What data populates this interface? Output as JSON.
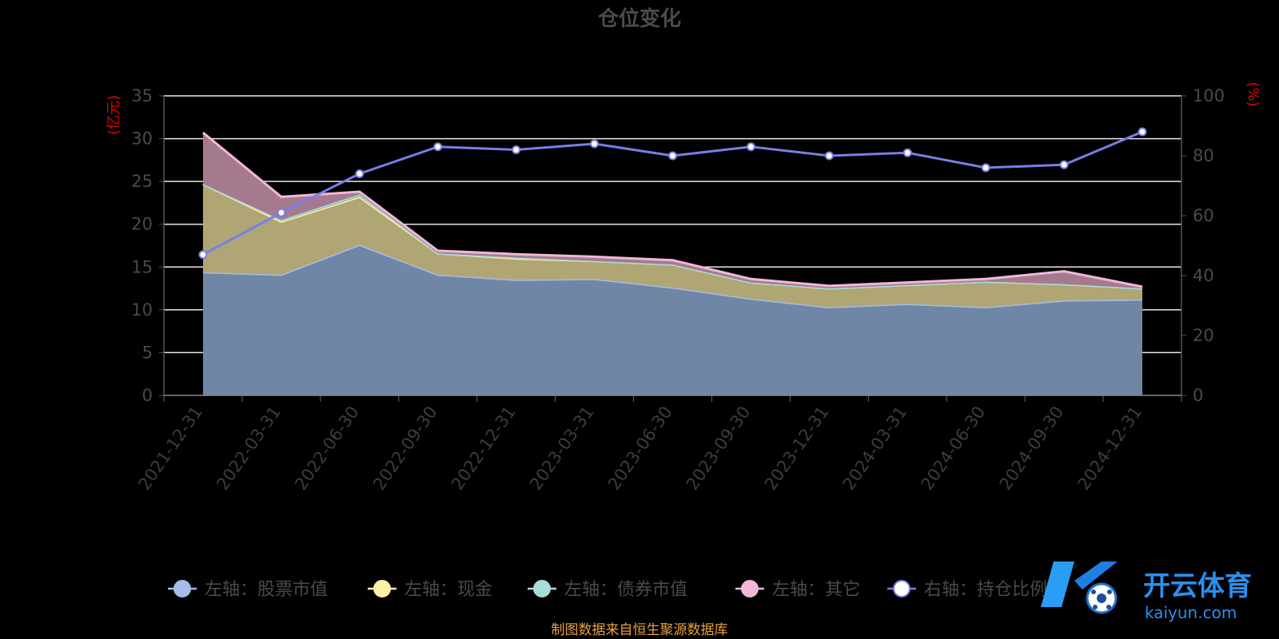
{
  "chart_data": {
    "type": "area",
    "title": "仓位变化",
    "ylabel_left": "(亿元)",
    "ylabel_right": "(%)",
    "ylim_left": [
      0,
      35
    ],
    "yticks_left": [
      0,
      5,
      10,
      15,
      20,
      25,
      30,
      35
    ],
    "ylim_right": [
      0,
      100
    ],
    "yticks_right": [
      0,
      20,
      40,
      60,
      80,
      100
    ],
    "grid": true,
    "legend_position": "bottom",
    "stacked": true,
    "categories": [
      "2021-12-31",
      "2022-03-31",
      "2022-06-30",
      "2022-09-30",
      "2022-12-31",
      "2023-03-31",
      "2023-06-30",
      "2023-09-30",
      "2023-12-31",
      "2024-03-31",
      "2024-06-30",
      "2024-09-30",
      "2024-12-31"
    ],
    "series": [
      {
        "name": "左轴：股票市值",
        "axis": "left",
        "color": "#a3bde6",
        "fill": "#6f86a6",
        "values": [
          14.4,
          14.1,
          17.6,
          14.1,
          13.5,
          13.6,
          12.6,
          11.3,
          10.3,
          10.7,
          10.3,
          11.1,
          11.2
        ]
      },
      {
        "name": "左轴：现金",
        "axis": "left",
        "color": "#fff0a8",
        "fill": "#b0a674",
        "values": [
          10.3,
          6.2,
          5.6,
          2.5,
          2.5,
          2.1,
          2.7,
          1.9,
          2.2,
          2.2,
          3.0,
          1.9,
          1.3
        ]
      },
      {
        "name": "左轴：债券市值",
        "axis": "left",
        "color": "#a8dcd8",
        "fill": "#8fb8b0",
        "values": [
          0.0,
          0.2,
          0.3,
          0.0,
          0.1,
          0.0,
          0.0,
          0.0,
          0.0,
          0.0,
          0.0,
          0.0,
          0.0
        ]
      },
      {
        "name": "左轴：其它",
        "axis": "left",
        "color": "#f0b8d8",
        "fill": "#a57a8f",
        "values": [
          6.0,
          2.7,
          0.3,
          0.3,
          0.4,
          0.5,
          0.5,
          0.4,
          0.3,
          0.3,
          0.3,
          1.5,
          0.2
        ]
      },
      {
        "name": "右轴：持仓比例",
        "axis": "right",
        "color": "#7b7de8",
        "values": [
          47,
          61,
          74,
          83,
          82,
          84,
          80,
          83,
          80,
          81,
          76,
          77,
          88
        ]
      }
    ]
  },
  "footer": {
    "source": "制图数据来自恒生聚源数据库"
  },
  "watermark": {
    "brand": "开云体育",
    "domain": "kaiyun.com"
  }
}
